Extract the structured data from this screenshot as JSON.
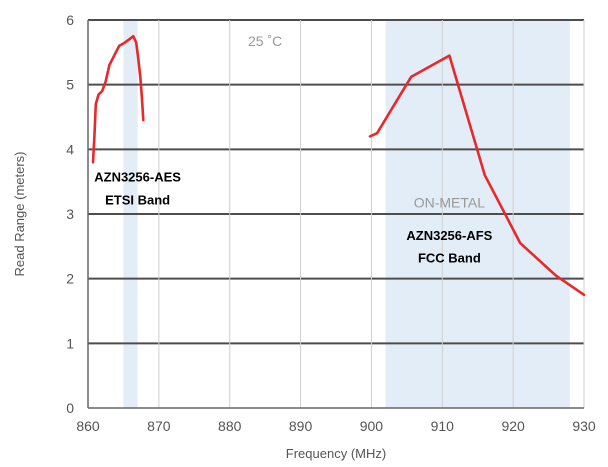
{
  "chart_data": {
    "type": "line",
    "title": "",
    "xlabel": "Frequency (MHz)",
    "ylabel": "Read Range (meters)",
    "xlim": [
      860,
      930
    ],
    "ylim": [
      0,
      6
    ],
    "x_ticks": [
      "860",
      "870",
      "880",
      "890",
      "900",
      "910",
      "920",
      "930"
    ],
    "y_ticks": [
      "0",
      "1",
      "2",
      "3",
      "4",
      "5",
      "6"
    ],
    "grid": "horizontal",
    "shaded_bands": [
      {
        "from": 865.0,
        "to": 867.0,
        "color": "#e3edf7"
      },
      {
        "from": 902.0,
        "to": 928.0,
        "color": "#e3edf7"
      }
    ],
    "series": [
      {
        "color": "#e8282b",
        "points": [
          [
            860.7,
            3.8
          ],
          [
            860.9,
            4.2
          ],
          [
            861.1,
            4.7
          ],
          [
            861.5,
            4.85
          ],
          [
            862.0,
            4.9
          ],
          [
            862.5,
            5.05
          ],
          [
            863.0,
            5.3
          ],
          [
            863.7,
            5.45
          ],
          [
            864.4,
            5.6
          ],
          [
            865.2,
            5.65
          ],
          [
            865.8,
            5.7
          ],
          [
            866.4,
            5.75
          ],
          [
            866.8,
            5.65
          ],
          [
            867.1,
            5.4
          ],
          [
            867.4,
            5.1
          ],
          [
            867.6,
            4.8
          ],
          [
            867.8,
            4.45
          ]
        ]
      },
      {
        "color": "#e8282b",
        "points": [
          [
            899.8,
            4.2
          ],
          [
            900.8,
            4.25
          ],
          [
            905.6,
            5.12
          ],
          [
            911.0,
            5.45
          ],
          [
            916.0,
            3.6
          ],
          [
            921.0,
            2.55
          ],
          [
            926.0,
            2.05
          ],
          [
            930.0,
            1.75
          ]
        ]
      }
    ],
    "annotations": [
      {
        "text": "25 ˚C",
        "x": 885,
        "y": 5.6,
        "style": "gray"
      },
      {
        "text": "AZN3256-AES",
        "x": 867,
        "y": 3.5,
        "style": "bold"
      },
      {
        "text": "ETSI Band",
        "x": 867,
        "y": 3.15,
        "style": "bold"
      },
      {
        "text": "ON-METAL",
        "x": 911,
        "y": 3.1,
        "style": "gray"
      },
      {
        "text": "AZN3256-AFS",
        "x": 911,
        "y": 2.6,
        "style": "bold"
      },
      {
        "text": "FCC Band",
        "x": 911,
        "y": 2.25,
        "style": "bold"
      }
    ]
  }
}
